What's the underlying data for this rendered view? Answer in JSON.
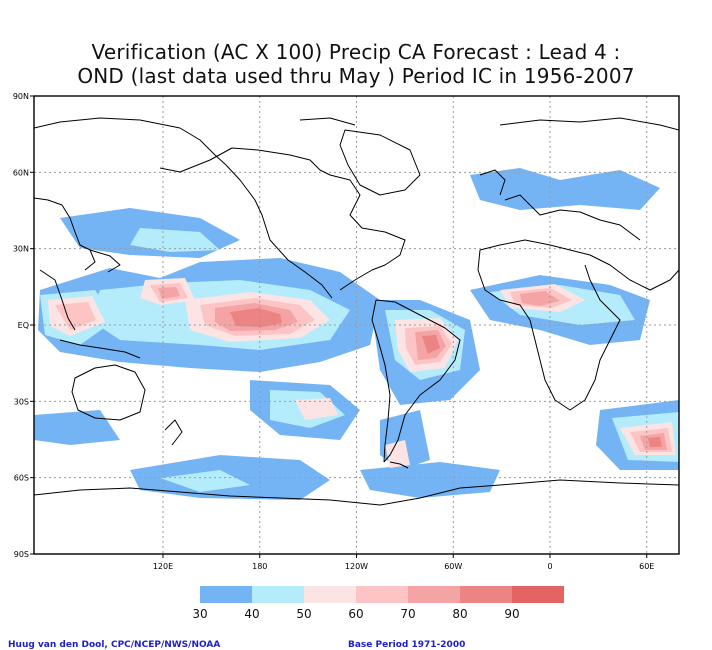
{
  "title_line1": "Verification (AC X 100) Precip CA Forecast : Lead 4 :",
  "title_line2": "OND (last data used thru May ) Period IC in 1956-2007",
  "lat_labels": [
    "90N",
    "60N",
    "30N",
    "EQ",
    "30S",
    "60S",
    "90S"
  ],
  "lat_values": [
    90,
    60,
    30,
    0,
    -30,
    -60,
    -90
  ],
  "lon_labels": [
    "120E",
    "180",
    "120W",
    "60W",
    "0",
    "60E"
  ],
  "lon_values": [
    120,
    180,
    240,
    300,
    360,
    420
  ],
  "colorbar": {
    "labels": [
      "30",
      "40",
      "50",
      "60",
      "70",
      "80",
      "90"
    ],
    "colors": [
      "#74b4f4",
      "#b4ecfc",
      "#fce4e4",
      "#fcc4c4",
      "#f4a4a4",
      "#ec8484",
      "#e46464"
    ]
  },
  "credit_left": "Huug van den Dool, CPC/NCEP/NWS/NOAA",
  "credit_right": "Base Period 1971-2000",
  "colors": {
    "land_outline": "#000000",
    "grid": "#9a9a9a",
    "frame": "#000000"
  }
}
